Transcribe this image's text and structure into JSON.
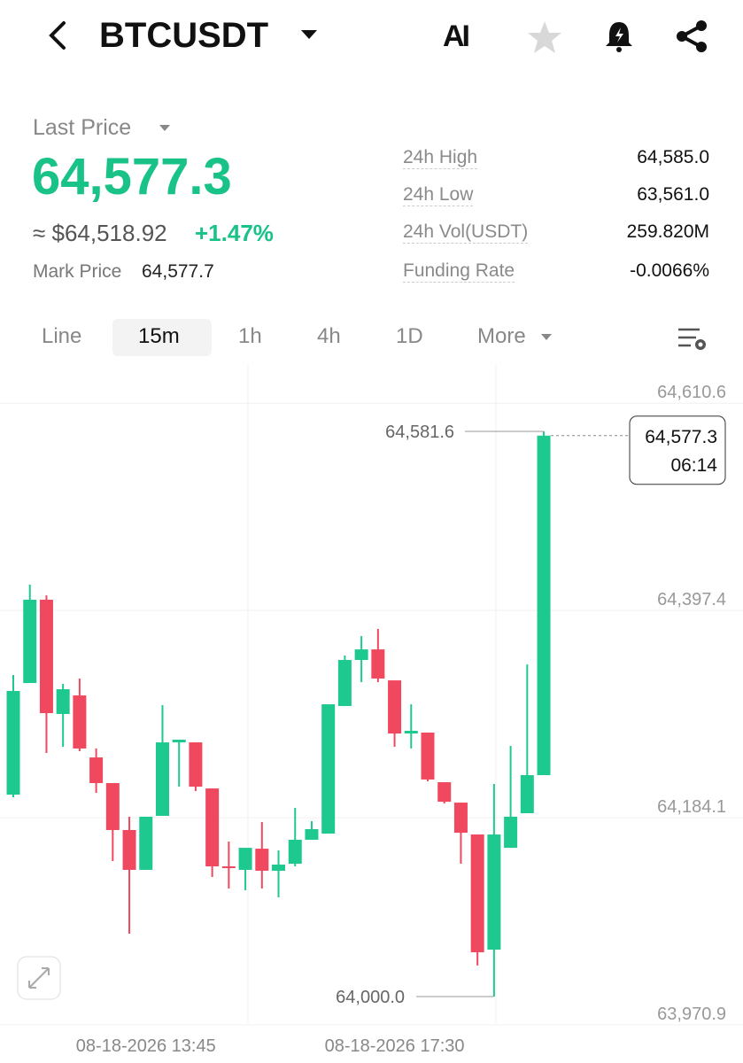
{
  "header": {
    "symbol": "BTCUSDT",
    "ai": "AI"
  },
  "price": {
    "label": "Last Price",
    "last": "64,577.3",
    "usd": "≈ $64,518.92",
    "change": "+1.47%",
    "mark_label": "Mark Price",
    "mark": "64,577.7"
  },
  "stats": [
    {
      "label": "24h High",
      "value": "64,585.0"
    },
    {
      "label": "24h Low",
      "value": "63,561.0"
    },
    {
      "label": "24h Vol(USDT)",
      "value": "259.820M"
    },
    {
      "label": "Funding Rate",
      "value": "-0.0066%"
    }
  ],
  "tabs": [
    "Line",
    "15m",
    "1h",
    "4h",
    "1D",
    "More"
  ],
  "selected_tab": 1,
  "chart_data": {
    "type": "candlestick",
    "up_color": "#1ec98f",
    "down_color": "#f0485e",
    "categories": [
      null,
      null,
      null,
      null,
      null,
      null,
      null,
      null,
      "08-18-2026 13:45",
      null,
      null,
      null,
      null,
      null,
      null,
      null,
      null,
      null,
      null,
      null,
      null,
      null,
      null,
      "08-18-2026 17:30",
      null,
      null,
      null,
      null,
      null,
      null,
      null,
      null,
      null
    ],
    "open": [
      64207.8,
      64322.7,
      64408.4,
      64290.8,
      64309.9,
      64246.1,
      64219.7,
      64171.4,
      64130.4,
      64186.0,
      64261.6,
      64261.6,
      64214.2,
      64134.0,
      64130.4,
      64152.2,
      64129.5,
      64136.7,
      64161.4,
      64167.7,
      64299.0,
      64346.4,
      64357.3,
      64325.4,
      64270.7,
      64271.7,
      64220.6,
      64199.6,
      64166.8,
      64048.3,
      64153.1,
      64188.7,
      64227.9
    ],
    "high": [
      64330.9,
      64423.9,
      64412.9,
      64321.8,
      64327.3,
      64255.3,
      64219.7,
      64185.1,
      64185.1,
      64299.9,
      64264.4,
      64261.6,
      64214.2,
      64159.5,
      64153.1,
      64179.6,
      64150.4,
      64194.2,
      64180.5,
      64300.8,
      64351.0,
      64371.0,
      64378.3,
      64325.4,
      64300.8,
      64271.7,
      64220.6,
      64199.6,
      64166.8,
      64218.8,
      64258.0,
      64341.8,
      64581.6
    ],
    "low": [
      64205.1,
      64322.7,
      64250.7,
      64257.1,
      64252.5,
      64209.7,
      64139.5,
      64064.7,
      64130.4,
      64186.0,
      64216.0,
      64211.5,
      64123.1,
      64111.2,
      64109.4,
      64111.2,
      64102.1,
      64134.0,
      64161.4,
      64167.7,
      64299.0,
      64323.6,
      64323.6,
      64257.1,
      64255.3,
      64221.5,
      64198.7,
      64136.7,
      64032.0,
      64000.0,
      64153.1,
      64188.7,
      64227.9
    ],
    "close": [
      64314.5,
      64408.4,
      64291.7,
      64316.3,
      64255.3,
      64219.7,
      64171.4,
      64130.4,
      64185.1,
      64261.6,
      64264.4,
      64216.0,
      64134.0,
      64132.2,
      64153.1,
      64129.5,
      64135.8,
      64161.4,
      64172.3,
      64300.8,
      64346.4,
      64357.3,
      64327.3,
      64270.7,
      64273.5,
      64223.4,
      64200.5,
      64168.6,
      64045.6,
      64166.8,
      64185.1,
      64227.9,
      64577.3
    ],
    "ylim": [
      63968.1,
      64633.6
    ],
    "yticks": [
      {
        "value": 64610.6,
        "label": "64,610.6"
      },
      {
        "value": 64397.4,
        "label": "64,397.4"
      },
      {
        "value": 64184.1,
        "label": "64,184.1"
      },
      {
        "value": 63970.9,
        "label": "63,970.9"
      }
    ],
    "grid": true,
    "high_label": "64,581.6",
    "low_label": "64,000.0",
    "last_label": "64,577.3",
    "countdown": "06:14"
  }
}
